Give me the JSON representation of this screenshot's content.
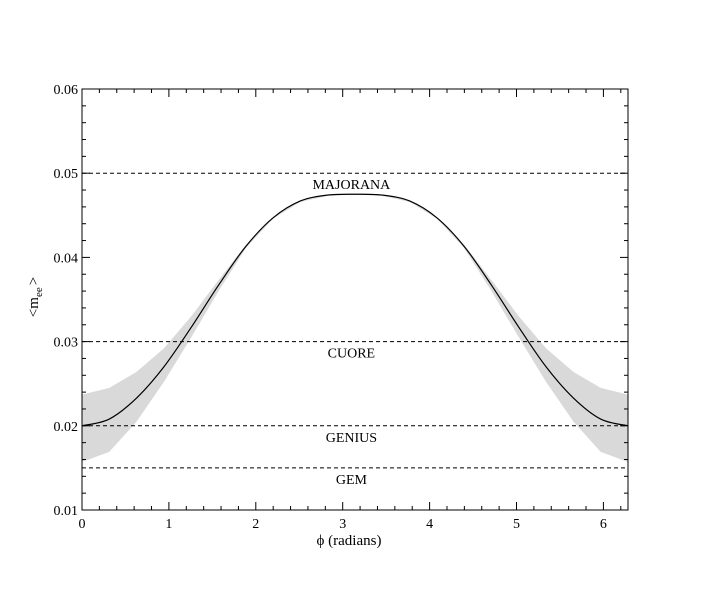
{
  "chart_data": {
    "type": "line",
    "title": "",
    "xlabel": "ϕ (radians)",
    "ylabel_main": "<m",
    "ylabel_sub": "ee",
    "ylabel_end": ">",
    "xlim": [
      0,
      6.283
    ],
    "ylim": [
      0.01,
      0.06
    ],
    "x_ticks": [
      0,
      1,
      2,
      3,
      4,
      5,
      6
    ],
    "x_tick_labels": [
      "0",
      "1",
      "2",
      "3",
      "4",
      "5",
      "6"
    ],
    "y_ticks": [
      0.01,
      0.02,
      0.03,
      0.04,
      0.05,
      0.06
    ],
    "y_tick_labels": [
      "0.01",
      "0.02",
      "0.03",
      "0.04",
      "0.05",
      "0.06"
    ],
    "grid": false,
    "legend": "none",
    "series": [
      {
        "x": [
          0,
          0.314,
          0.628,
          0.942,
          1.257,
          1.571,
          1.885,
          2.199,
          2.513,
          2.827,
          3.142,
          3.456,
          3.77,
          4.084,
          4.398,
          4.712,
          5.027,
          5.341,
          5.655,
          5.969,
          6.283
        ],
        "values": [
          0.02,
          0.0208,
          0.0233,
          0.027,
          0.0317,
          0.0367,
          0.0413,
          0.0447,
          0.0467,
          0.0474,
          0.0475,
          0.0474,
          0.0467,
          0.0447,
          0.0413,
          0.0367,
          0.0317,
          0.027,
          0.0233,
          0.0208,
          0.02
        ],
        "color": "#000000"
      }
    ],
    "band": {
      "x": [
        0,
        0.314,
        0.628,
        0.942,
        1.257,
        1.571,
        1.885,
        2.199,
        2.513,
        2.827,
        3.142,
        3.456,
        3.77,
        4.084,
        4.398,
        4.712,
        5.027,
        5.341,
        5.655,
        5.969,
        6.283
      ],
      "lower": [
        0.0157,
        0.0169,
        0.0205,
        0.0252,
        0.0305,
        0.036,
        0.0411,
        0.0446,
        0.0466,
        0.0473,
        0.0475,
        0.0473,
        0.0466,
        0.0446,
        0.0411,
        0.036,
        0.0305,
        0.0252,
        0.0205,
        0.0169,
        0.0157
      ],
      "upper": [
        0.0237,
        0.0245,
        0.0264,
        0.0292,
        0.033,
        0.0373,
        0.0415,
        0.0448,
        0.0468,
        0.0475,
        0.0475,
        0.0475,
        0.0468,
        0.0448,
        0.0415,
        0.0373,
        0.033,
        0.0292,
        0.0264,
        0.0245,
        0.0237
      ],
      "color": "#d9d9d9"
    },
    "reference_lines": [
      {
        "y": 0.05,
        "label": "MAJORANA",
        "label_position": "below",
        "label_x": 3.1
      },
      {
        "y": 0.03,
        "label": "CUORE",
        "label_position": "below",
        "label_x": 3.1
      },
      {
        "y": 0.02,
        "label": "GENIUS",
        "label_position": "below",
        "label_x": 3.1
      },
      {
        "y": 0.015,
        "label": "GEM",
        "label_position": "below",
        "label_x": 3.1
      }
    ]
  }
}
